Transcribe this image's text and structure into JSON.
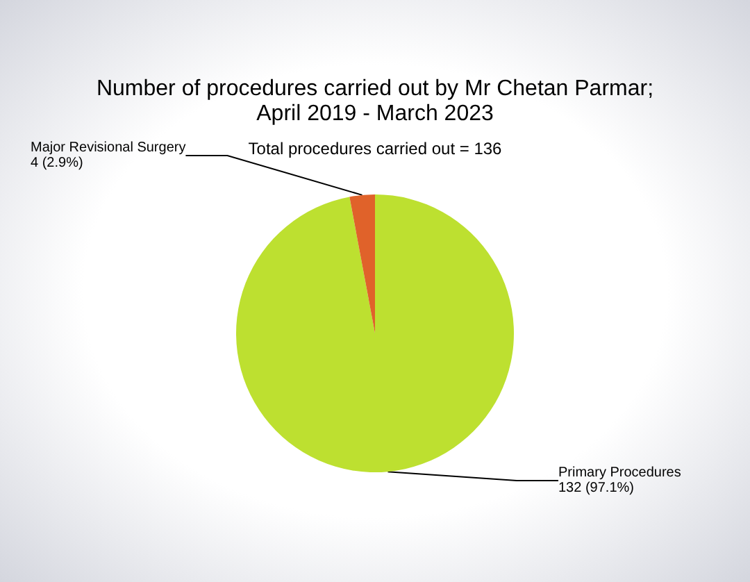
{
  "chart_data": {
    "type": "pie",
    "title": "Number of procedures carried out by Mr Chetan Parmar;\nApril 2019 - March 2023",
    "subtitle": "Total procedures carried out = 136",
    "categories": [
      "Primary Procedures",
      "Major Revisional Surgery"
    ],
    "values": [
      132,
      4
    ],
    "value_labels": [
      "132 (97.1%)",
      "4 (2.9%)"
    ],
    "colors": [
      "#bde030",
      "#e0622a"
    ],
    "legend": false
  }
}
